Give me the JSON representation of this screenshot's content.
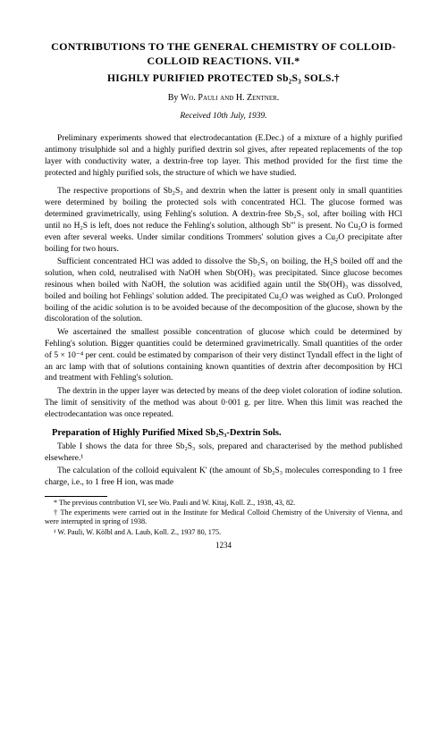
{
  "title_line1": "CONTRIBUTIONS TO THE GENERAL CHEMISTRY OF COLLOID-COLLOID REACTIONS. VII.*",
  "title_line2": "HIGHLY PURIFIED PROTECTED Sb₂S₃ SOLS.†",
  "authors_prefix": "By ",
  "authors": "Wo. Pauli and H. Zentner.",
  "received": "Received 10th July, 1939.",
  "para1": "Preliminary experiments showed that electrodecantation (E.Dec.) of a mixture of a highly purified antimony trisulphide sol and a highly purified dextrin sol gives, after repeated replacements of the top layer with conductivity water, a dextrin-free top layer. This method provided for the first time the protected and highly purified sols, the structure of which we have studied.",
  "para2": "The respective proportions of Sb₂S₃ and dextrin when the latter is present only in small quantities were determined by boiling the protected sols with concentrated HCl. The glucose formed was determined gravimetrically, using Fehling's solution. A dextrin-free Sb₂S₃ sol, after boiling with HCl until no H₂S is left, does not reduce the Fehling's solution, although Sb''' is present. No Cu₂O is formed even after several weeks. Under similar conditions Trommers' solution gives a Cu₂O precipitate after boiling for two hours.",
  "para3": "Sufficient concentrated HCl was added to dissolve the Sb₂S₃ on boiling, the H₂S boiled off and the solution, when cold, neutralised with NaOH when Sb(OH)₃ was precipitated. Since glucose becomes resinous when boiled with NaOH, the solution was acidified again until the Sb(OH)₃ was dissolved, boiled and boiling hot Fehlings' solution added. The precipitated Cu₂O was weighed as CuO. Prolonged boiling of the acidic solution is to be avoided because of the decomposition of the glucose, shown by the discoloration of the solution.",
  "para4": "We ascertained the smallest possible concentration of glucose which could be determined by Fehling's solution. Bigger quantities could be determined gravimetrically. Small quantities of the order of 5 × 10⁻⁴ per cent. could be estimated by comparison of their very distinct Tyndall effect in the light of an arc lamp with that of solutions containing known quantities of dextrin after decomposition by HCl and treatment with Fehling's solution.",
  "para5": "The dextrin in the upper layer was detected by means of the deep violet coloration of iodine solution. The limit of sensitivity of the method was about 0·001 g. per litre. When this limit was reached the electrodecantation was once repeated.",
  "section_heading": "Preparation of Highly Purified Mixed Sb₂S₃-Dextrin Sols.",
  "para6": "Table I shows the data for three Sb₂S₃ sols, prepared and characterised by the method published elsewhere.¹",
  "para7": "The calculation of the colloid equivalent K' (the amount of Sb₂S₃ molecules corresponding to 1 free charge, i.e., to 1 free H ion, was made",
  "footnote1": "* The previous contribution VI, see Wo. Pauli and W. Kitaj, Koll. Z., 1938, 43, 82.",
  "footnote2": "† The experiments were carried out in the Institute for Medical Colloid Chemistry of the University of Vienna, and were interrupted in spring of 1938.",
  "footnote3": "¹ W. Pauli, W. Kölbl and A. Laub, Koll. Z., 1937 80, 175.",
  "page_number": "1234"
}
